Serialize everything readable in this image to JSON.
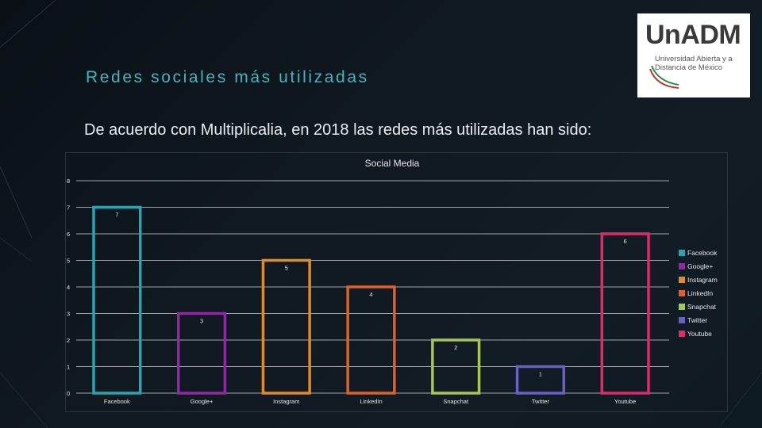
{
  "slide": {
    "title": "Redes sociales más utilizadas",
    "subtitle": "De acuerdo con Multiplicalia, en 2018 las redes más utilizadas han sido:"
  },
  "logo": {
    "title": "UnADM",
    "subtitle": "Universidad Abierta y a Distancia de México"
  },
  "chart_data": {
    "type": "bar",
    "title": "Social Media",
    "categories": [
      "Facebook",
      "Google+",
      "Instagram",
      "LinkedIn",
      "Snapchat",
      "Twitter",
      "Youtube"
    ],
    "values": [
      7,
      3,
      5,
      4,
      2,
      1,
      6
    ],
    "colors": [
      "#2aa3b3",
      "#8e2a9f",
      "#e08a28",
      "#e0602a",
      "#a6c655",
      "#6a5fc4",
      "#e0286a"
    ],
    "ylim": [
      0,
      8
    ],
    "yticks": [
      "0",
      "1",
      "2",
      "3",
      "4",
      "5",
      "6",
      "7",
      "8"
    ],
    "data_labels": [
      "7",
      "3",
      "5",
      "4",
      "2",
      "1",
      "6"
    ],
    "legend": [
      "Facebook",
      "Google+",
      "Instagram",
      "LinkedIn",
      "Snapchat",
      "Twitter",
      "Youtube"
    ],
    "legend_position": "right",
    "grid": true,
    "bar_style": "outlined"
  }
}
